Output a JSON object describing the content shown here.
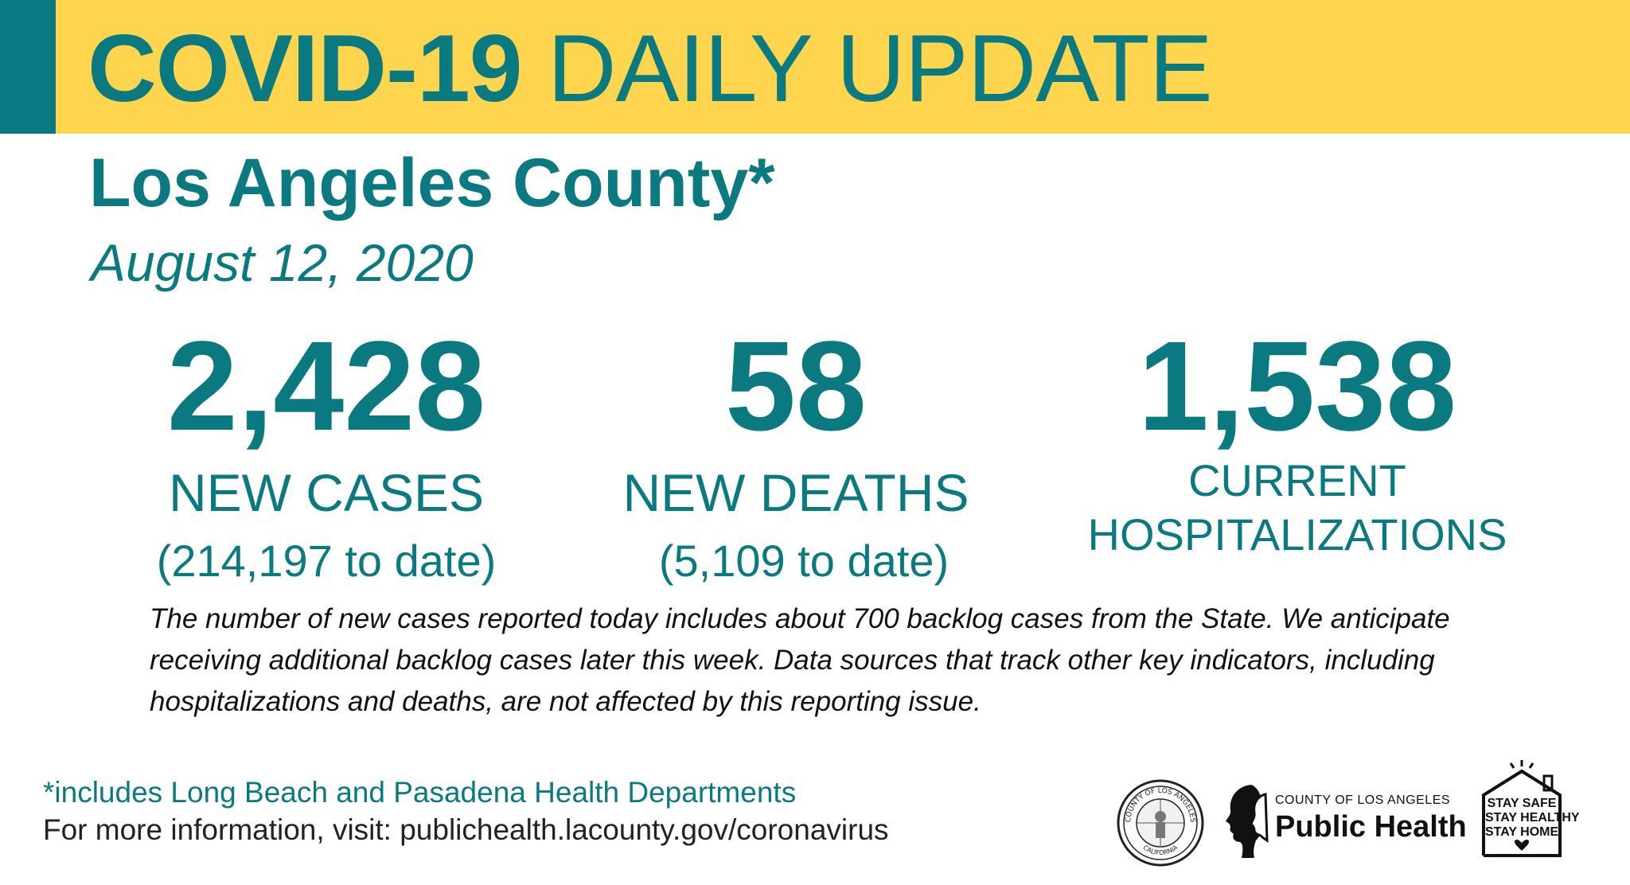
{
  "banner": {
    "title_bold": "COVID-19",
    "title_regular": "DAILY UPDATE",
    "colors": {
      "background": "#fdd54f",
      "accent": "#0b7a80"
    }
  },
  "county": "Los Angeles County*",
  "date": "August 12, 2020",
  "stats": {
    "new_cases": {
      "value": "2,428",
      "label": "NEW CASES",
      "to_date": "(214,197 to date)"
    },
    "new_deaths": {
      "value": "58",
      "label": "NEW DEATHS",
      "to_date": "(5,109 to date)"
    },
    "hospitalizations": {
      "value": "1,538",
      "label_line1": "CURRENT",
      "label_line2": "HOSPITALIZATIONS"
    }
  },
  "note": "The number of new cases reported today includes about 700 backlog cases from the State. We anticipate receiving additional backlog cases later this week. Data sources that track other key indicators, including hospitalizations and deaths, are not affected by this reporting issue.",
  "footer": {
    "footnote": "*includes Long Beach and Pasadena Health Departments",
    "more_info": "For more information, visit: publichealth.lacounty.gov/coronavirus"
  },
  "logos": {
    "seal": {
      "icon": "county-seal-icon",
      "text_top": "COUNTY OF LOS ANGELES",
      "text_bottom": "CALIFORNIA"
    },
    "public_health": {
      "icon": "public-health-profile-icon",
      "county": "COUNTY OF LOS ANGELES",
      "name": "Public Health"
    },
    "stay_safe": {
      "icon": "house-icon",
      "line1": "STAY SAFE",
      "line2": "STAY HEALTHY",
      "line3": "STAY HOME"
    }
  }
}
